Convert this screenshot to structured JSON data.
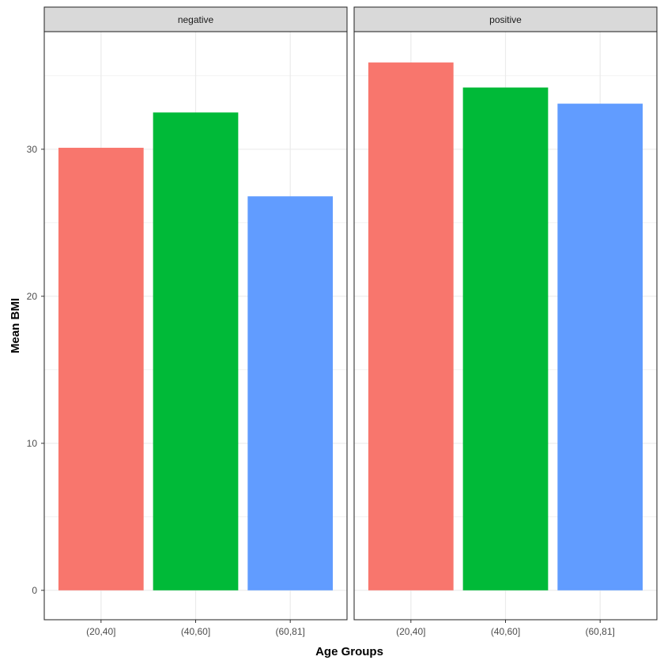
{
  "chart_data": {
    "type": "bar",
    "xlabel": "Age Groups",
    "ylabel": "Mean BMI",
    "ylim": [
      -2,
      38
    ],
    "yticks": [
      0,
      10,
      20,
      30
    ],
    "grid": true,
    "legend": "none",
    "colors": [
      "#F8766D",
      "#00BA38",
      "#619CFF"
    ],
    "panels": [
      {
        "strip": "negative",
        "categories": [
          "(20,40]",
          "(40,60]",
          "(60,81]"
        ],
        "values": [
          30.1,
          32.5,
          26.8
        ]
      },
      {
        "strip": "positive",
        "categories": [
          "(20,40]",
          "(40,60]",
          "(60,81]"
        ],
        "values": [
          35.9,
          34.2,
          33.1
        ]
      }
    ]
  }
}
